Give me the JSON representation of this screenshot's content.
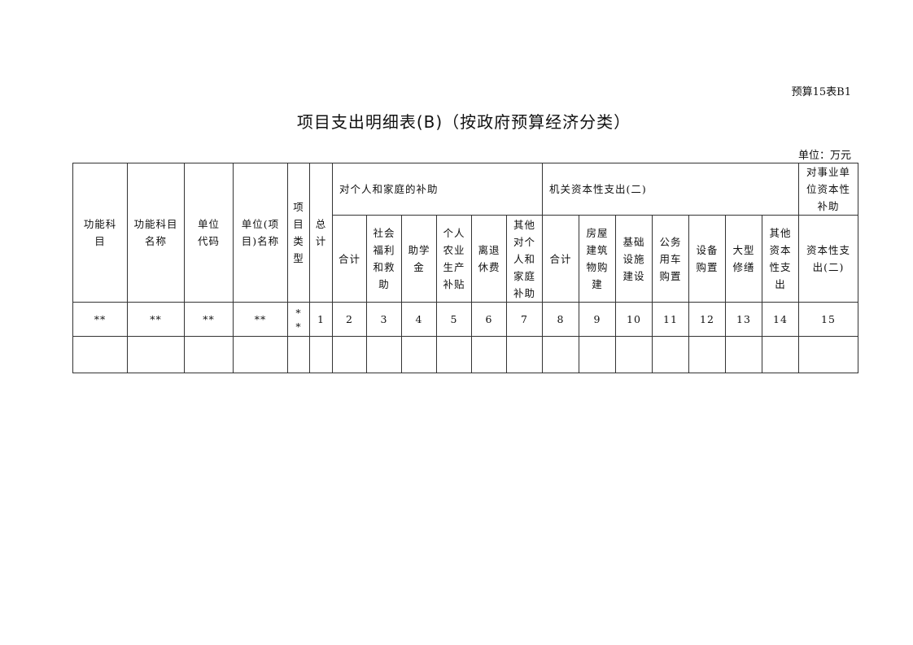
{
  "doc_code": "预算15表B1",
  "title": "项目支出明细表(B)（按政府预算经济分类）",
  "unit": "单位：万元",
  "headers": {
    "func_subject": "功能科\n目",
    "func_subject_name": "功能科目\n名称",
    "unit_code": "单位\n代码",
    "unit_name": "单位(项\n目)名称",
    "project_type": "项\n目\n类\n型",
    "total": "总\n计",
    "group1": "对个人和家庭的补助",
    "group2": "机关资本性支出(二)",
    "group3": "对事业单\n位资本性\n补助",
    "g1_cols": [
      "合计",
      "社会\n福利\n和救\n助",
      "助学\n金",
      "个人\n农业\n生产\n补贴",
      "离退\n休费",
      "其他\n对个\n人和\n家庭\n补助"
    ],
    "g2_cols": [
      "合计",
      "房屋\n建筑\n物购\n建",
      "基础\n设施\n建设",
      "公务\n用车\n购置",
      "设备\n购置",
      "大型\n修缮",
      "其他\n资本\n性支\n出"
    ],
    "g3_cols": [
      "资本性支\n出(二)"
    ]
  },
  "index_row": [
    "**",
    "**",
    "**",
    "**",
    "*\n*",
    "1",
    "2",
    "3",
    "4",
    "5",
    "6",
    "7",
    "8",
    "9",
    "10",
    "11",
    "12",
    "13",
    "14",
    "15"
  ]
}
